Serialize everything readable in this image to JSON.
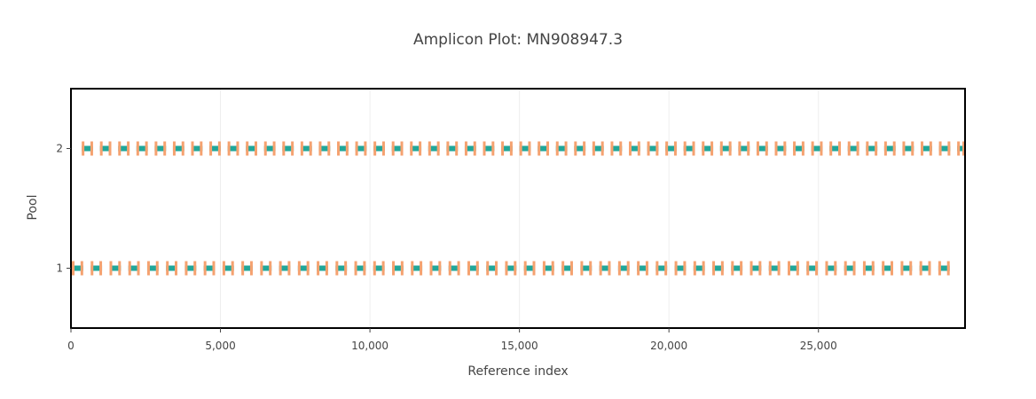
{
  "chart_data": {
    "type": "scatter",
    "title": "Amplicon Plot: MN908947.3",
    "xlabel": "Reference index",
    "ylabel": "Pool",
    "xlim": [
      0,
      29903
    ],
    "ylim": [
      0.5,
      2.5
    ],
    "x_ticks": [
      0,
      5000,
      10000,
      15000,
      20000,
      25000
    ],
    "x_tick_labels": [
      "0",
      "5,000",
      "10,000",
      "15,000",
      "20,000",
      "25,000"
    ],
    "y_ticks": [
      1,
      2
    ],
    "y_tick_labels": [
      "1",
      "2"
    ],
    "grid": true,
    "legend": "none",
    "colors": {
      "amplicon_body": "#20a79a",
      "primer": "#f5a270",
      "frame": "#000000",
      "grid": "#eeeeee",
      "text": "#444444"
    },
    "series": [
      {
        "pool": 1,
        "amplicons": [
          [
            30,
            410
          ],
          [
            660,
            1040
          ],
          [
            1290,
            1670
          ],
          [
            1920,
            2300
          ],
          [
            2550,
            2930
          ],
          [
            3180,
            3560
          ],
          [
            3810,
            4190
          ],
          [
            4440,
            4820
          ],
          [
            5070,
            5450
          ],
          [
            5700,
            6080
          ],
          [
            6330,
            6710
          ],
          [
            6960,
            7340
          ],
          [
            7590,
            7970
          ],
          [
            8220,
            8600
          ],
          [
            8850,
            9230
          ],
          [
            9480,
            9860
          ],
          [
            10110,
            10490
          ],
          [
            10740,
            11120
          ],
          [
            11370,
            11750
          ],
          [
            12000,
            12380
          ],
          [
            12630,
            13010
          ],
          [
            13260,
            13640
          ],
          [
            13890,
            14270
          ],
          [
            14520,
            14900
          ],
          [
            15150,
            15530
          ],
          [
            15780,
            16160
          ],
          [
            16410,
            16790
          ],
          [
            17040,
            17420
          ],
          [
            17670,
            18050
          ],
          [
            18300,
            18680
          ],
          [
            18930,
            19310
          ],
          [
            19560,
            19940
          ],
          [
            20190,
            20570
          ],
          [
            20820,
            21200
          ],
          [
            21450,
            21830
          ],
          [
            22080,
            22460
          ],
          [
            22710,
            23090
          ],
          [
            23340,
            23720
          ],
          [
            23970,
            24350
          ],
          [
            24600,
            24980
          ],
          [
            25230,
            25610
          ],
          [
            25860,
            26240
          ],
          [
            26490,
            26870
          ],
          [
            27120,
            27500
          ],
          [
            27750,
            28130
          ],
          [
            28380,
            28760
          ],
          [
            29010,
            29390
          ]
        ]
      },
      {
        "pool": 2,
        "amplicons": [
          [
            360,
            740
          ],
          [
            970,
            1350
          ],
          [
            1580,
            1960
          ],
          [
            2190,
            2570
          ],
          [
            2800,
            3180
          ],
          [
            3410,
            3790
          ],
          [
            4020,
            4400
          ],
          [
            4630,
            5010
          ],
          [
            5240,
            5620
          ],
          [
            5850,
            6230
          ],
          [
            6460,
            6840
          ],
          [
            7070,
            7450
          ],
          [
            7680,
            8060
          ],
          [
            8290,
            8670
          ],
          [
            8900,
            9280
          ],
          [
            9510,
            9890
          ],
          [
            10120,
            10500
          ],
          [
            10730,
            11110
          ],
          [
            11340,
            11720
          ],
          [
            11950,
            12330
          ],
          [
            12560,
            12940
          ],
          [
            13170,
            13550
          ],
          [
            13780,
            14160
          ],
          [
            14390,
            14770
          ],
          [
            15000,
            15380
          ],
          [
            15610,
            15990
          ],
          [
            16220,
            16600
          ],
          [
            16830,
            17210
          ],
          [
            17440,
            17820
          ],
          [
            18050,
            18430
          ],
          [
            18660,
            19040
          ],
          [
            19270,
            19650
          ],
          [
            19880,
            20260
          ],
          [
            20490,
            20870
          ],
          [
            21100,
            21480
          ],
          [
            21710,
            22090
          ],
          [
            22320,
            22700
          ],
          [
            22930,
            23310
          ],
          [
            23540,
            23920
          ],
          [
            24150,
            24530
          ],
          [
            24760,
            25140
          ],
          [
            25370,
            25750
          ],
          [
            25980,
            26360
          ],
          [
            26590,
            26970
          ],
          [
            27200,
            27580
          ],
          [
            27810,
            28190
          ],
          [
            28420,
            28800
          ],
          [
            29030,
            29410
          ],
          [
            29640,
            29903
          ]
        ]
      }
    ]
  }
}
